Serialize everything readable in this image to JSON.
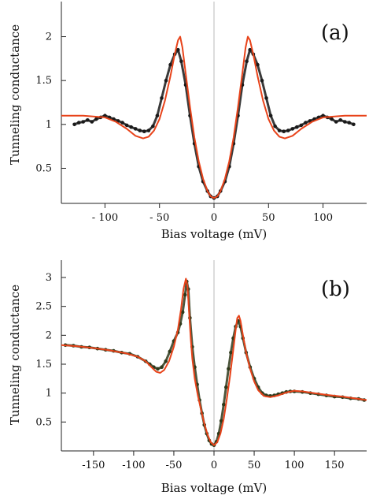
{
  "chart_data": [
    {
      "type": "scatter",
      "panel_label": "(a)",
      "xlabel": "Bias voltage (mV)",
      "ylabel": "Tunneling conductance",
      "xlim": [
        -140,
        140
      ],
      "ylim": [
        0.1,
        2.4
      ],
      "xticks": [
        -100,
        -50,
        0,
        50,
        100
      ],
      "xtick_labels": [
        "- 100",
        "- 50",
        "0",
        "50",
        "100"
      ],
      "yticks": [
        0.5,
        1,
        1.5,
        2
      ],
      "ytick_labels": [
        "0.5",
        "1",
        "1.5",
        "2"
      ],
      "zero_line": true,
      "grid": false,
      "series": [
        {
          "role": "data",
          "color": "#1a1a1a",
          "x": [
            -128,
            -124,
            -120,
            -116,
            -112,
            -108,
            -104,
            -100,
            -96,
            -92,
            -88,
            -84,
            -80,
            -76,
            -72,
            -68,
            -64,
            -60,
            -56,
            -52,
            -48,
            -44,
            -40,
            -36,
            -33,
            -30,
            -26,
            -22,
            -18,
            -14,
            -10,
            -6,
            -3,
            0,
            3,
            6,
            10,
            14,
            18,
            22,
            26,
            30,
            33,
            36,
            40,
            44,
            48,
            52,
            56,
            60,
            64,
            68,
            72,
            76,
            80,
            84,
            88,
            92,
            96,
            100,
            104,
            108,
            112,
            116,
            120,
            124,
            128
          ],
          "y": [
            1.0,
            1.02,
            1.03,
            1.05,
            1.03,
            1.06,
            1.08,
            1.1,
            1.08,
            1.06,
            1.04,
            1.02,
            0.99,
            0.97,
            0.95,
            0.93,
            0.92,
            0.93,
            0.98,
            1.1,
            1.3,
            1.5,
            1.68,
            1.8,
            1.85,
            1.72,
            1.45,
            1.1,
            0.78,
            0.52,
            0.35,
            0.24,
            0.18,
            0.16,
            0.18,
            0.24,
            0.35,
            0.52,
            0.78,
            1.1,
            1.45,
            1.72,
            1.85,
            1.8,
            1.68,
            1.5,
            1.3,
            1.1,
            0.98,
            0.93,
            0.92,
            0.93,
            0.95,
            0.97,
            0.99,
            1.02,
            1.04,
            1.06,
            1.08,
            1.1,
            1.08,
            1.06,
            1.03,
            1.05,
            1.03,
            1.02,
            1.0
          ]
        },
        {
          "role": "fit",
          "color": "#e8431a",
          "x": [
            -140,
            -120,
            -100,
            -90,
            -80,
            -72,
            -65,
            -60,
            -55,
            -50,
            -45,
            -40,
            -36,
            -33,
            -31,
            -29,
            -26,
            -22,
            -18,
            -14,
            -10,
            -6,
            -3,
            0,
            3,
            6,
            10,
            14,
            18,
            22,
            26,
            29,
            31,
            33,
            36,
            40,
            45,
            50,
            55,
            60,
            65,
            72,
            80,
            90,
            100,
            120,
            140
          ],
          "y": [
            1.1,
            1.1,
            1.08,
            1.03,
            0.95,
            0.87,
            0.84,
            0.86,
            0.93,
            1.06,
            1.27,
            1.55,
            1.8,
            1.96,
            2.0,
            1.88,
            1.58,
            1.2,
            0.85,
            0.58,
            0.38,
            0.24,
            0.18,
            0.16,
            0.18,
            0.24,
            0.38,
            0.58,
            0.85,
            1.2,
            1.58,
            1.88,
            2.0,
            1.96,
            1.8,
            1.55,
            1.27,
            1.06,
            0.93,
            0.86,
            0.84,
            0.87,
            0.95,
            1.03,
            1.08,
            1.1,
            1.1
          ]
        }
      ]
    },
    {
      "type": "scatter",
      "panel_label": "(b)",
      "xlabel": "Bias voltage (mV)",
      "ylabel": "Tunneling conductance",
      "xlim": [
        -190,
        190
      ],
      "ylim": [
        0.0,
        3.3
      ],
      "xticks": [
        -150,
        -100,
        -50,
        0,
        50,
        100,
        150
      ],
      "xtick_labels": [
        "-150",
        "-100",
        "-50",
        "0",
        "50",
        "100",
        "150"
      ],
      "yticks": [
        0.5,
        1,
        1.5,
        2,
        2.5,
        3
      ],
      "ytick_labels": [
        "0.5",
        "1",
        "1.5",
        "2",
        "2.5",
        "3"
      ],
      "zero_line": true,
      "grid": false,
      "series": [
        {
          "role": "data",
          "color": "#2e3a1c",
          "x": [
            -185,
            -175,
            -165,
            -155,
            -145,
            -135,
            -125,
            -115,
            -105,
            -95,
            -85,
            -80,
            -75,
            -70,
            -65,
            -60,
            -55,
            -50,
            -45,
            -42,
            -39,
            -36,
            -34,
            -32,
            -30,
            -27,
            -24,
            -21,
            -18,
            -15,
            -12,
            -9,
            -6,
            -3,
            0,
            3,
            6,
            9,
            12,
            15,
            18,
            21,
            24,
            27,
            30,
            33,
            36,
            40,
            45,
            50,
            55,
            60,
            65,
            70,
            75,
            80,
            85,
            90,
            95,
            100,
            110,
            120,
            130,
            140,
            150,
            160,
            170,
            180,
            187
          ],
          "y": [
            1.83,
            1.82,
            1.8,
            1.79,
            1.77,
            1.75,
            1.73,
            1.7,
            1.68,
            1.63,
            1.55,
            1.5,
            1.45,
            1.42,
            1.45,
            1.55,
            1.72,
            1.9,
            2.05,
            2.2,
            2.4,
            2.7,
            2.93,
            2.8,
            2.3,
            1.8,
            1.45,
            1.15,
            0.88,
            0.65,
            0.45,
            0.3,
            0.18,
            0.12,
            0.1,
            0.16,
            0.3,
            0.52,
            0.8,
            1.1,
            1.42,
            1.7,
            1.95,
            2.15,
            2.25,
            2.15,
            1.95,
            1.7,
            1.45,
            1.25,
            1.1,
            1.0,
            0.96,
            0.95,
            0.96,
            0.98,
            1.0,
            1.02,
            1.03,
            1.03,
            1.02,
            1.0,
            0.98,
            0.96,
            0.94,
            0.93,
            0.91,
            0.9,
            0.88
          ]
        },
        {
          "role": "fit",
          "color": "#e8431a",
          "x": [
            -190,
            -170,
            -150,
            -130,
            -110,
            -95,
            -85,
            -78,
            -72,
            -67,
            -62,
            -56,
            -50,
            -45,
            -41,
            -38,
            -35,
            -33,
            -31,
            -29,
            -27,
            -24,
            -20,
            -16,
            -12,
            -8,
            -4,
            0,
            4,
            8,
            12,
            16,
            20,
            24,
            27,
            29,
            31,
            33,
            36,
            40,
            45,
            50,
            55,
            62,
            70,
            80,
            90,
            100,
            110,
            125,
            140,
            160,
            190
          ],
          "y": [
            1.83,
            1.81,
            1.78,
            1.74,
            1.69,
            1.63,
            1.55,
            1.45,
            1.37,
            1.35,
            1.4,
            1.55,
            1.8,
            2.1,
            2.45,
            2.8,
            2.98,
            2.85,
            2.4,
            1.95,
            1.6,
            1.25,
            0.95,
            0.7,
            0.47,
            0.28,
            0.15,
            0.1,
            0.15,
            0.3,
            0.55,
            0.9,
            1.3,
            1.75,
            2.1,
            2.3,
            2.34,
            2.25,
            2.0,
            1.7,
            1.42,
            1.2,
            1.05,
            0.95,
            0.93,
            0.96,
            1.01,
            1.04,
            1.03,
            1.0,
            0.97,
            0.94,
            0.88
          ]
        }
      ]
    }
  ]
}
